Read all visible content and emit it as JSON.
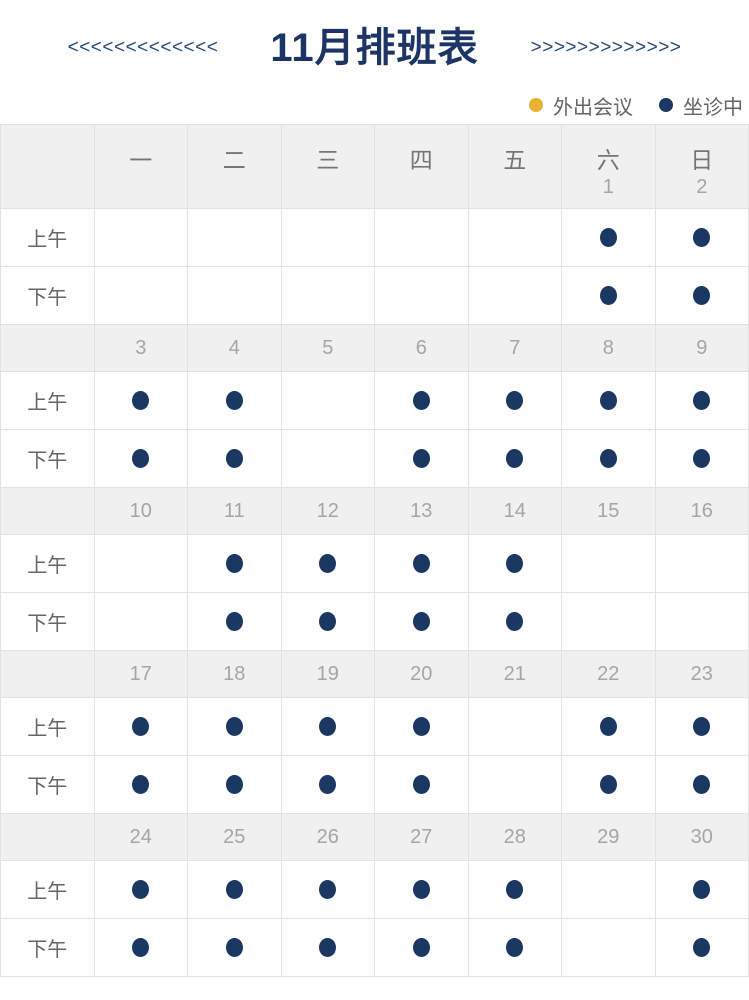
{
  "header": {
    "title": "11月排班表",
    "left_decoration": "<<<<<<<<<<<<<",
    "right_decoration": ">>>>>>>>>>>>>"
  },
  "legend": {
    "items": [
      {
        "id": "meeting-out",
        "label": "外出会议",
        "color": "#e9b234"
      },
      {
        "id": "on-duty",
        "label": "坐诊中",
        "color": "#1b3863"
      }
    ]
  },
  "schedule": {
    "weekday_headers": [
      "一",
      "二",
      "三",
      "四",
      "五",
      "六",
      "日"
    ],
    "header_dates": [
      "",
      "",
      "",
      "",
      "",
      "1",
      "2"
    ],
    "row_labels": {
      "morning": "上午",
      "afternoon": "下午"
    },
    "weeks": [
      {
        "dates": null,
        "morning": [
          "",
          "",
          "",
          "",
          "",
          "on-duty",
          "on-duty"
        ],
        "afternoon": [
          "",
          "",
          "",
          "",
          "",
          "on-duty",
          "on-duty"
        ]
      },
      {
        "dates": [
          "3",
          "4",
          "5",
          "6",
          "7",
          "8",
          "9"
        ],
        "morning": [
          "on-duty",
          "on-duty",
          "",
          "on-duty",
          "on-duty",
          "on-duty",
          "on-duty"
        ],
        "afternoon": [
          "on-duty",
          "on-duty",
          "",
          "on-duty",
          "on-duty",
          "on-duty",
          "on-duty"
        ]
      },
      {
        "dates": [
          "10",
          "11",
          "12",
          "13",
          "14",
          "15",
          "16"
        ],
        "morning": [
          "",
          "on-duty",
          "on-duty",
          "on-duty",
          "on-duty",
          "",
          ""
        ],
        "afternoon": [
          "",
          "on-duty",
          "on-duty",
          "on-duty",
          "on-duty",
          "",
          ""
        ]
      },
      {
        "dates": [
          "17",
          "18",
          "19",
          "20",
          "21",
          "22",
          "23"
        ],
        "morning": [
          "on-duty",
          "on-duty",
          "on-duty",
          "on-duty",
          "",
          "on-duty",
          "on-duty"
        ],
        "afternoon": [
          "on-duty",
          "on-duty",
          "on-duty",
          "on-duty",
          "",
          "on-duty",
          "on-duty"
        ]
      },
      {
        "dates": [
          "24",
          "25",
          "26",
          "27",
          "28",
          "29",
          "30"
        ],
        "morning": [
          "on-duty",
          "on-duty",
          "on-duty",
          "on-duty",
          "on-duty",
          "",
          "on-duty"
        ],
        "afternoon": [
          "on-duty",
          "on-duty",
          "on-duty",
          "on-duty",
          "on-duty",
          "",
          "on-duty"
        ]
      }
    ]
  },
  "colors": {
    "accent_navy": "#1c3566",
    "chevron_navy": "#2b4a7a",
    "dot_navy": "#1b3863",
    "dot_yellow": "#e9b234",
    "header_bg": "#f0f0f0",
    "grid_line": "#e2e2e2",
    "weekday_gray": "#757575",
    "label_gray": "#666666",
    "date_gray": "#a5a5a5"
  }
}
